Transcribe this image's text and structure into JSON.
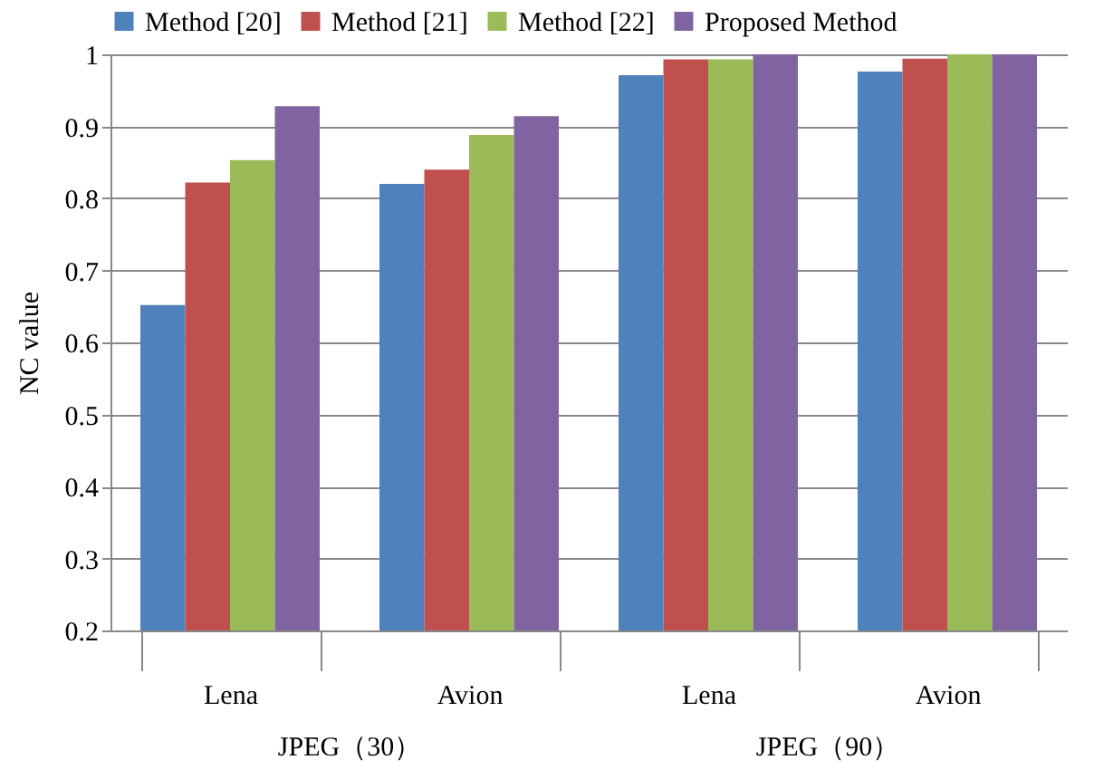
{
  "chart_data": {
    "type": "bar",
    "ylabel": "NC value",
    "categories": [
      "Lena",
      "Avion",
      "Lena",
      "Avion"
    ],
    "annotations": [
      "JPEG（30）",
      "JPEG（90）"
    ],
    "series": [
      {
        "name": "Method [20]",
        "color": "#4f81bd",
        "values": [
          0.652,
          0.82,
          0.971,
          0.976
        ]
      },
      {
        "name": "Method [21]",
        "color": "#c0504d",
        "values": [
          0.822,
          0.84,
          0.993,
          0.994
        ]
      },
      {
        "name": "Method [22]",
        "color": "#9bbb59",
        "values": [
          0.853,
          0.888,
          0.993,
          1.0
        ]
      },
      {
        "name": "Proposed Method",
        "color": "#8064a2",
        "values": [
          0.928,
          0.914,
          1.0,
          1.0
        ]
      }
    ],
    "ylim": [
      0.2,
      1
    ],
    "yticks": [
      0.2,
      0.3,
      0.4,
      0.5,
      0.6,
      0.7,
      0.8,
      0.9,
      1
    ],
    "grid": "y",
    "legend": "top"
  }
}
